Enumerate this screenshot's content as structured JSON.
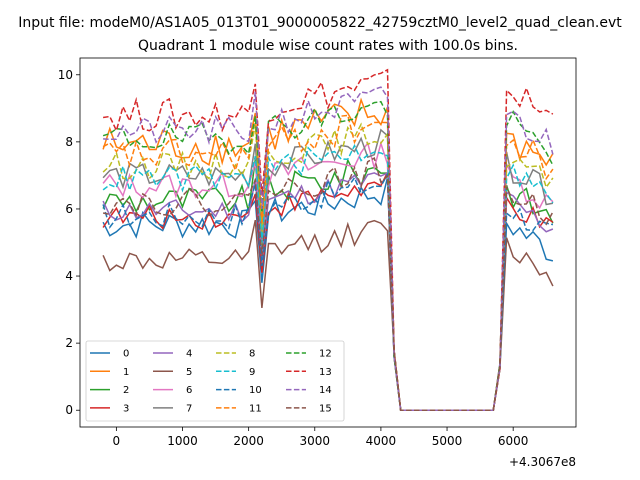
{
  "chart_data": {
    "type": "line",
    "suptitle": "Input file: modeM0/AS1A05_013T01_9000005822_42759cztM0_level2_quad_clean.evt",
    "title": "Quadrant 1 module wise count rates with 100.0s bins.",
    "xlabel": "",
    "ylabel": "",
    "x_offset_label": "+4.3067e8",
    "xlim": [
      -550,
      6950
    ],
    "ylim": [
      -0.5,
      10.5
    ],
    "x_ticks": [
      0,
      1000,
      2000,
      3000,
      4000,
      5000,
      6000
    ],
    "x_tick_labels": [
      "0",
      "1000",
      "2000",
      "3000",
      "4000",
      "5000",
      "6000"
    ],
    "y_ticks": [
      0,
      2,
      4,
      6,
      8,
      10
    ],
    "y_tick_labels": [
      "0",
      "2",
      "4",
      "6",
      "8",
      "10"
    ],
    "grid": false,
    "legend_position": "lower-left",
    "legend_columns": 4,
    "series": [
      {
        "name": "0",
        "color": "#1f77b4",
        "dash": "solid",
        "base": 5.55,
        "amp": 0.45,
        "dip": 3.8,
        "post": 5.3
      },
      {
        "name": "1",
        "color": "#ff7f0e",
        "dash": "solid",
        "base": 7.9,
        "amp": 0.6,
        "dip": 5.5,
        "post": 7.9
      },
      {
        "name": "2",
        "color": "#2ca02c",
        "dash": "solid",
        "base": 6.25,
        "amp": 0.45,
        "dip": 4.6,
        "post": 6.3
      },
      {
        "name": "3",
        "color": "#d62728",
        "dash": "solid",
        "base": 5.75,
        "amp": 0.35,
        "dip": 4.1,
        "post": 5.9
      },
      {
        "name": "4",
        "color": "#9467bd",
        "dash": "solid",
        "base": 5.95,
        "amp": 0.35,
        "dip": 4.5,
        "post": 6.0
      },
      {
        "name": "5",
        "color": "#8c564b",
        "dash": "solid",
        "base": 4.45,
        "amp": 0.35,
        "dip": 3.05,
        "post": 4.6
      },
      {
        "name": "6",
        "color": "#e377c2",
        "dash": "solid",
        "base": 6.7,
        "amp": 0.4,
        "dip": 5.0,
        "post": 6.7
      },
      {
        "name": "7",
        "color": "#7f7f7f",
        "dash": "solid",
        "base": 7.0,
        "amp": 0.4,
        "dip": 5.1,
        "post": 7.0
      },
      {
        "name": "8",
        "color": "#bcbd22",
        "dash": "dashed",
        "base": 7.3,
        "amp": 0.4,
        "dip": 5.3,
        "post": 7.3
      },
      {
        "name": "9",
        "color": "#17becf",
        "dash": "dashed",
        "base": 6.9,
        "amp": 0.4,
        "dip": 5.0,
        "post": 6.9
      },
      {
        "name": "10",
        "color": "#1f77b4",
        "dash": "dashed",
        "base": 5.8,
        "amp": 0.4,
        "dip": 4.3,
        "post": 5.8
      },
      {
        "name": "11",
        "color": "#ff7f0e",
        "dash": "dashed",
        "base": 7.6,
        "amp": 0.5,
        "dip": 5.6,
        "post": 7.8
      },
      {
        "name": "12",
        "color": "#2ca02c",
        "dash": "dashed",
        "base": 8.1,
        "amp": 0.45,
        "dip": 5.9,
        "post": 8.3
      },
      {
        "name": "13",
        "color": "#d62728",
        "dash": "dashed",
        "base": 8.8,
        "amp": 0.5,
        "dip": 6.4,
        "post": 9.3
      },
      {
        "name": "14",
        "color": "#9467bd",
        "dash": "dashed",
        "base": 8.3,
        "amp": 0.45,
        "dip": 6.0,
        "post": 8.5
      },
      {
        "name": "15",
        "color": "#8c564b",
        "dash": "dashed",
        "base": 6.2,
        "amp": 0.4,
        "dip": 4.6,
        "post": 6.3
      }
    ],
    "x_start": -200,
    "x_step": 100,
    "gap_start": 4300,
    "gap_end": 5700,
    "x_end": 6600
  }
}
